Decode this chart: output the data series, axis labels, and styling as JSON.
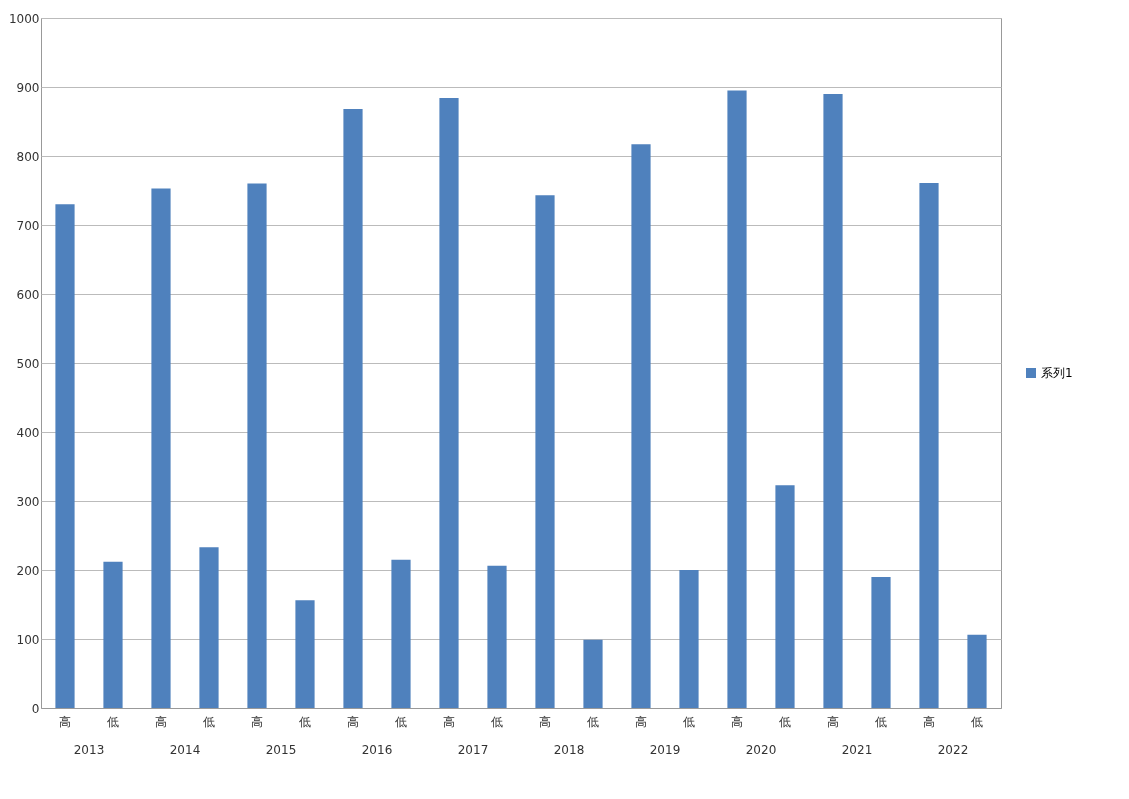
{
  "chart_data": {
    "type": "bar",
    "categories": [
      "高",
      "低",
      "高",
      "低",
      "高",
      "低",
      "高",
      "低",
      "高",
      "低",
      "高",
      "低",
      "高",
      "低",
      "高",
      "低",
      "高",
      "低",
      "高",
      "低"
    ],
    "series": [
      {
        "name": "系列1",
        "color": "#4f81bd",
        "values": [
          730,
          212,
          753,
          233,
          760,
          156,
          868,
          215,
          884,
          206,
          743,
          99,
          817,
          200,
          895,
          323,
          890,
          190,
          761,
          106
        ]
      }
    ],
    "annotations": [
      "2013",
      "2014",
      "2015",
      "2016",
      "2017",
      "2018",
      "2019",
      "2020",
      "2021",
      "2022"
    ],
    "ylim": [
      0,
      1000
    ],
    "yticks": [
      0,
      100,
      200,
      300,
      400,
      500,
      600,
      700,
      800,
      900,
      1000
    ],
    "grid": "y",
    "legend": "right"
  }
}
